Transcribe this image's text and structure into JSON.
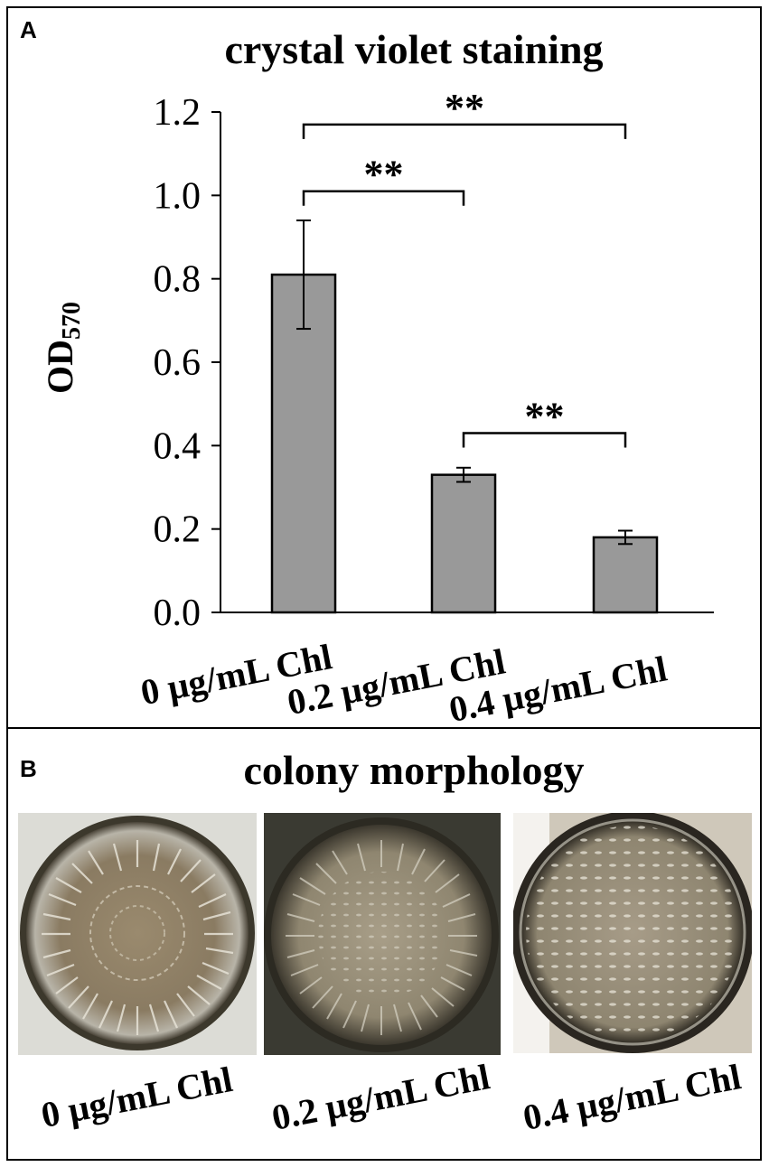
{
  "panel_a": {
    "letter": "A",
    "title": "crystal violet staining"
  },
  "panel_b": {
    "letter": "B",
    "title": "colony morphology",
    "photos": [
      {
        "label": "0 µg/mL Chl"
      },
      {
        "label": "0.2 µg/mL Chl"
      },
      {
        "label": "0.4 µg/mL Chl"
      }
    ]
  },
  "chart_data": {
    "type": "bar",
    "title": "crystal violet staining",
    "ylabel_main": "OD",
    "ylabel_sub": "570",
    "xlabel": "",
    "categories": [
      "0 µg/mL Chl",
      "0.2 µg/mL Chl",
      "0.4 µg/mL Chl"
    ],
    "values": [
      0.81,
      0.33,
      0.18
    ],
    "errors": [
      0.13,
      0.017,
      0.016
    ],
    "ylim": [
      0,
      1.2
    ],
    "yticks": [
      "0.0",
      "0.2",
      "0.4",
      "0.6",
      "0.8",
      "1.0",
      "1.2"
    ],
    "bar_color": "#999999",
    "significance": [
      {
        "from": 0,
        "to": 2,
        "label": "**",
        "y": 1.17
      },
      {
        "from": 0,
        "to": 1,
        "label": "**",
        "y": 1.01
      },
      {
        "from": 1,
        "to": 2,
        "label": "**",
        "y": 0.43
      }
    ]
  }
}
